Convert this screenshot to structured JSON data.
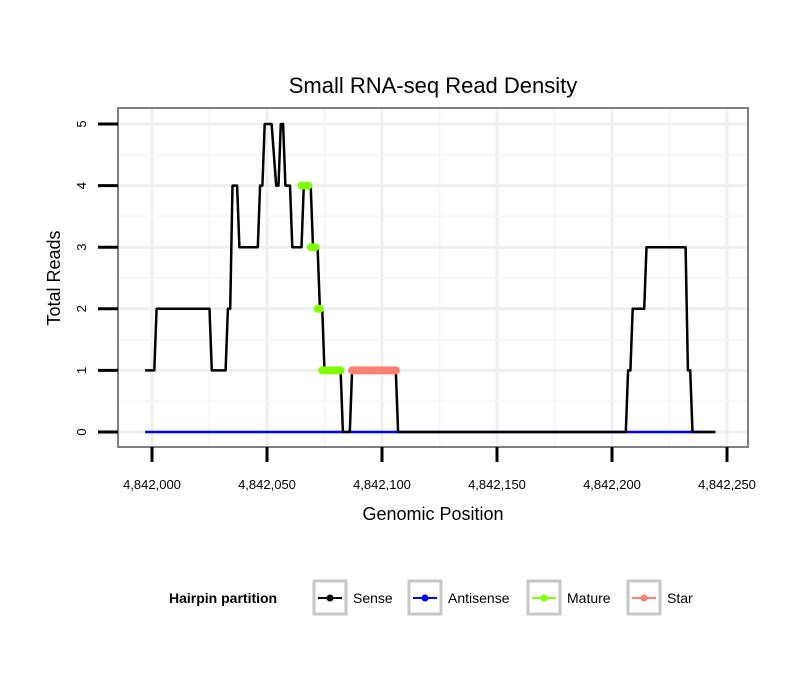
{
  "chart_data": {
    "type": "line",
    "title": "Small RNA-seq Read Density",
    "xlabel": "Genomic Position",
    "ylabel": "Total Reads",
    "xlim": [
      4841995,
      4842250
    ],
    "ylim": [
      0,
      5
    ],
    "x_ticks": [
      4842000,
      4842050,
      4842100,
      4842150,
      4842200,
      4842250
    ],
    "x_tick_labels": [
      "4,842,000",
      "4,842,050",
      "4,842,100",
      "4,842,150",
      "4,842,200",
      "4,842,250"
    ],
    "y_ticks": [
      0,
      1,
      2,
      3,
      4,
      5
    ],
    "y_tick_labels": [
      "0",
      "1",
      "2",
      "3",
      "4",
      "5"
    ],
    "grid": true,
    "legend": {
      "title": "Hairpin partition",
      "position": "bottom",
      "items": [
        {
          "label": "Sense",
          "color": "#000000"
        },
        {
          "label": "Antisense",
          "color": "#0000ff"
        },
        {
          "label": "Mature",
          "color": "#7fff00"
        },
        {
          "label": "Star",
          "color": "#fa8072"
        }
      ]
    },
    "series": [
      {
        "name": "Sense",
        "color": "#000000",
        "style": "line",
        "points": [
          [
            4841997,
            1
          ],
          [
            4842001,
            1
          ],
          [
            4842002,
            2
          ],
          [
            4842025,
            2
          ],
          [
            4842026,
            1
          ],
          [
            4842032,
            1
          ],
          [
            4842033,
            2
          ],
          [
            4842034,
            2
          ],
          [
            4842035,
            4
          ],
          [
            4842037,
            4
          ],
          [
            4842038,
            3
          ],
          [
            4842046,
            3
          ],
          [
            4842047,
            4
          ],
          [
            4842048,
            4
          ],
          [
            4842049,
            5
          ],
          [
            4842052,
            5
          ],
          [
            4842054,
            4
          ],
          [
            4842055,
            4
          ],
          [
            4842056,
            5
          ],
          [
            4842057,
            5
          ],
          [
            4842058,
            4
          ],
          [
            4842060,
            4
          ],
          [
            4842061,
            3
          ],
          [
            4842065,
            3
          ],
          [
            4842066,
            4
          ],
          [
            4842069,
            4
          ],
          [
            4842070,
            3
          ],
          [
            4842072,
            3
          ],
          [
            4842073,
            2
          ],
          [
            4842074,
            2
          ],
          [
            4842075,
            1
          ],
          [
            4842082,
            1
          ],
          [
            4842083,
            0
          ],
          [
            4842086,
            0
          ],
          [
            4842087,
            1
          ],
          [
            4842106,
            1
          ],
          [
            4842107,
            0
          ],
          [
            4842206,
            0
          ],
          [
            4842207,
            1
          ],
          [
            4842208,
            1
          ],
          [
            4842209,
            2
          ],
          [
            4842214,
            2
          ],
          [
            4842215,
            3
          ],
          [
            4842232,
            3
          ],
          [
            4842233,
            1
          ],
          [
            4842234,
            1
          ],
          [
            4842235,
            0
          ],
          [
            4842245,
            0
          ]
        ]
      },
      {
        "name": "Antisense",
        "color": "#0000ff",
        "style": "line",
        "points": [
          [
            4841997,
            0
          ],
          [
            4842245,
            0
          ]
        ]
      },
      {
        "name": "Mature",
        "color": "#7fff00",
        "style": "points",
        "points": [
          [
            4842065,
            4
          ],
          [
            4842066,
            4
          ],
          [
            4842067,
            4
          ],
          [
            4842068,
            4
          ],
          [
            4842069,
            3
          ],
          [
            4842070,
            3
          ],
          [
            4842071,
            3
          ],
          [
            4842072,
            2
          ],
          [
            4842073,
            2
          ],
          [
            4842074,
            1
          ],
          [
            4842075,
            1
          ],
          [
            4842076,
            1
          ],
          [
            4842077,
            1
          ],
          [
            4842078,
            1
          ],
          [
            4842079,
            1
          ],
          [
            4842080,
            1
          ],
          [
            4842081,
            1
          ],
          [
            4842082,
            1
          ]
        ]
      },
      {
        "name": "Star",
        "color": "#fa8072",
        "style": "points",
        "points": [
          [
            4842087,
            1
          ],
          [
            4842088,
            1
          ],
          [
            4842089,
            1
          ],
          [
            4842090,
            1
          ],
          [
            4842091,
            1
          ],
          [
            4842092,
            1
          ],
          [
            4842093,
            1
          ],
          [
            4842094,
            1
          ],
          [
            4842095,
            1
          ],
          [
            4842096,
            1
          ],
          [
            4842097,
            1
          ],
          [
            4842098,
            1
          ],
          [
            4842099,
            1
          ],
          [
            4842100,
            1
          ],
          [
            4842101,
            1
          ],
          [
            4842102,
            1
          ],
          [
            4842103,
            1
          ],
          [
            4842104,
            1
          ],
          [
            4842105,
            1
          ],
          [
            4842106,
            1
          ]
        ]
      }
    ]
  }
}
